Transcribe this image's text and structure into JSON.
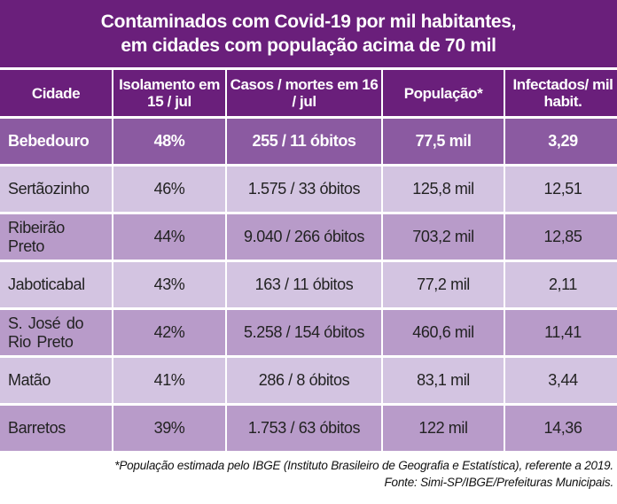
{
  "title": {
    "line1": "Contaminados com Covid-19 por mil habitantes,",
    "line2": "em cidades com população acima de 70 mil"
  },
  "columns": [
    "Cidade",
    "Isolamento em 15 / jul",
    "Casos / mortes em 16 / jul",
    "População*",
    "Infectados/ mil habit."
  ],
  "rows": [
    {
      "cidade": "Bebedouro",
      "isolamento": "48%",
      "casos": "255 / 11 óbitos",
      "populacao": "77,5 mil",
      "infectados": "3,29",
      "highlight": true
    },
    {
      "cidade": "Sertãozinho",
      "isolamento": "46%",
      "casos": "1.575 / 33 óbitos",
      "populacao": "125,8 mil",
      "infectados": "12,51"
    },
    {
      "cidade": "Ribeirão Preto",
      "isolamento": "44%",
      "casos": "9.040 / 266 óbitos",
      "populacao": "703,2 mil",
      "infectados": "12,85"
    },
    {
      "cidade": "Jaboticabal",
      "isolamento": "43%",
      "casos": "163 / 11 óbitos",
      "populacao": "77,2 mil",
      "infectados": "2,11"
    },
    {
      "cidade": "S. José do Rio Preto",
      "isolamento": "42%",
      "casos": "5.258 / 154 óbitos",
      "populacao": "460,6 mil",
      "infectados": "11,41"
    },
    {
      "cidade": "Matão",
      "isolamento": "41%",
      "casos": "286 / 8 óbitos",
      "populacao": "83,1 mil",
      "infectados": "3,44"
    },
    {
      "cidade": "Barretos",
      "isolamento": "39%",
      "casos": "1.753 / 63 óbitos",
      "populacao": "122 mil",
      "infectados": "14,36"
    }
  ],
  "footnote": "*População estimada pelo IBGE (Instituto Brasileiro de Geografia e Estatística), referente a 2019.",
  "source": "Fonte: Simi-SP/IBGE/Prefeituras Municipais.",
  "colors": {
    "header": "#6a1f7b",
    "highlight": "#8b5aa1",
    "row_light": "#d3c4e1",
    "row_dark": "#b89bc9"
  }
}
